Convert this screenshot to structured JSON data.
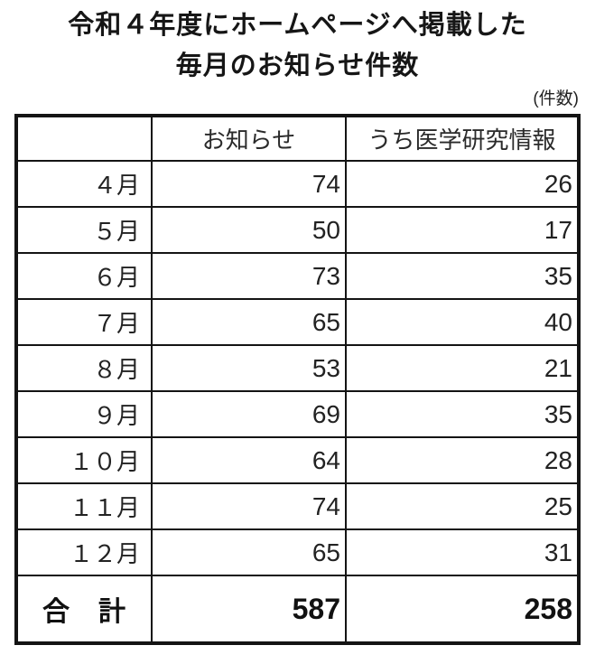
{
  "header": {
    "title_line1": "令和４年度にホームページへ掲載した",
    "title_line2": "毎月のお知らせ件数",
    "unit_label": "(件数)"
  },
  "chart_data": {
    "type": "table",
    "title": "令和４年度にホームページへ掲載した毎月のお知らせ件数",
    "unit": "件数",
    "columns": [
      "",
      "お知らせ",
      "うち医学研究情報"
    ],
    "rows": [
      {
        "month": "４月",
        "announcements": 74,
        "medical_research": 26
      },
      {
        "month": "５月",
        "announcements": 50,
        "medical_research": 17
      },
      {
        "month": "６月",
        "announcements": 73,
        "medical_research": 35
      },
      {
        "month": "７月",
        "announcements": 65,
        "medical_research": 40
      },
      {
        "month": "８月",
        "announcements": 53,
        "medical_research": 21
      },
      {
        "month": "９月",
        "announcements": 69,
        "medical_research": 35
      },
      {
        "month": "１０月",
        "announcements": 64,
        "medical_research": 28
      },
      {
        "month": "１１月",
        "announcements": 74,
        "medical_research": 25
      },
      {
        "month": "１２月",
        "announcements": 65,
        "medical_research": 31
      }
    ],
    "total": {
      "label": "合　計",
      "announcements": 587,
      "medical_research": 258
    }
  },
  "colors": {
    "background": "#ffffff",
    "border": "#141414",
    "text": "#1a1a1a"
  }
}
